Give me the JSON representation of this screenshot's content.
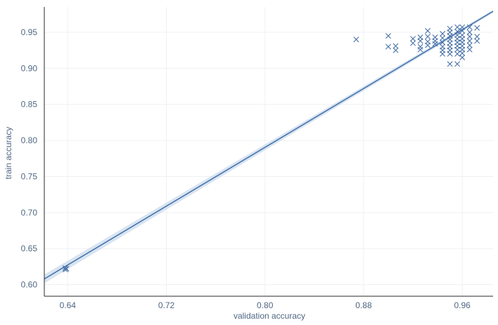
{
  "chart_data": {
    "type": "scatter",
    "xlabel": "validation accuracy",
    "ylabel": "train accuracy",
    "xlim": [
      0.621,
      0.985
    ],
    "ylim": [
      0.584,
      0.985
    ],
    "x_ticks": [
      0.64,
      0.72,
      0.8,
      0.88,
      0.96
    ],
    "x_tick_labels": [
      "0.64",
      "0.72",
      "0.80",
      "0.88",
      "0.96"
    ],
    "y_ticks": [
      0.6,
      0.65,
      0.7,
      0.75,
      0.8,
      0.85,
      0.9,
      0.95
    ],
    "y_tick_labels": [
      "0.60",
      "0.65",
      "0.70",
      "0.75",
      "0.80",
      "0.85",
      "0.90",
      "0.95"
    ],
    "grid": true,
    "marker": "x",
    "color": "#4a72a8",
    "regression": {
      "x": [
        0.621,
        0.985
      ],
      "y": [
        0.608,
        0.979
      ],
      "band_halfwidth": [
        0.006,
        0.002
      ]
    },
    "points": [
      {
        "x": 0.638,
        "y": 0.623
      },
      {
        "x": 0.639,
        "y": 0.622
      },
      {
        "x": 0.638,
        "y": 0.621
      },
      {
        "x": 0.874,
        "y": 0.94
      },
      {
        "x": 0.9,
        "y": 0.945
      },
      {
        "x": 0.9,
        "y": 0.93
      },
      {
        "x": 0.906,
        "y": 0.931
      },
      {
        "x": 0.906,
        "y": 0.925
      },
      {
        "x": 0.92,
        "y": 0.941
      },
      {
        "x": 0.92,
        "y": 0.935
      },
      {
        "x": 0.926,
        "y": 0.943
      },
      {
        "x": 0.926,
        "y": 0.938
      },
      {
        "x": 0.926,
        "y": 0.93
      },
      {
        "x": 0.926,
        "y": 0.926
      },
      {
        "x": 0.932,
        "y": 0.952
      },
      {
        "x": 0.932,
        "y": 0.944
      },
      {
        "x": 0.932,
        "y": 0.937
      },
      {
        "x": 0.932,
        "y": 0.932
      },
      {
        "x": 0.938,
        "y": 0.943
      },
      {
        "x": 0.938,
        "y": 0.938
      },
      {
        "x": 0.938,
        "y": 0.934
      },
      {
        "x": 0.944,
        "y": 0.948
      },
      {
        "x": 0.944,
        "y": 0.942
      },
      {
        "x": 0.944,
        "y": 0.936
      },
      {
        "x": 0.944,
        "y": 0.93
      },
      {
        "x": 0.944,
        "y": 0.925
      },
      {
        "x": 0.944,
        "y": 0.92
      },
      {
        "x": 0.95,
        "y": 0.955
      },
      {
        "x": 0.95,
        "y": 0.95
      },
      {
        "x": 0.95,
        "y": 0.945
      },
      {
        "x": 0.95,
        "y": 0.94
      },
      {
        "x": 0.95,
        "y": 0.935
      },
      {
        "x": 0.95,
        "y": 0.93
      },
      {
        "x": 0.95,
        "y": 0.925
      },
      {
        "x": 0.95,
        "y": 0.92
      },
      {
        "x": 0.95,
        "y": 0.906
      },
      {
        "x": 0.956,
        "y": 0.957
      },
      {
        "x": 0.956,
        "y": 0.951
      },
      {
        "x": 0.956,
        "y": 0.946
      },
      {
        "x": 0.956,
        "y": 0.941
      },
      {
        "x": 0.956,
        "y": 0.936
      },
      {
        "x": 0.956,
        "y": 0.931
      },
      {
        "x": 0.956,
        "y": 0.926
      },
      {
        "x": 0.956,
        "y": 0.92
      },
      {
        "x": 0.956,
        "y": 0.906
      },
      {
        "x": 0.96,
        "y": 0.957
      },
      {
        "x": 0.96,
        "y": 0.952
      },
      {
        "x": 0.96,
        "y": 0.946
      },
      {
        "x": 0.96,
        "y": 0.941
      },
      {
        "x": 0.96,
        "y": 0.936
      },
      {
        "x": 0.96,
        "y": 0.931
      },
      {
        "x": 0.96,
        "y": 0.926
      },
      {
        "x": 0.96,
        "y": 0.921
      },
      {
        "x": 0.96,
        "y": 0.915
      },
      {
        "x": 0.966,
        "y": 0.957
      },
      {
        "x": 0.966,
        "y": 0.95
      },
      {
        "x": 0.966,
        "y": 0.944
      },
      {
        "x": 0.966,
        "y": 0.938
      },
      {
        "x": 0.966,
        "y": 0.932
      },
      {
        "x": 0.966,
        "y": 0.926
      },
      {
        "x": 0.972,
        "y": 0.956
      },
      {
        "x": 0.972,
        "y": 0.944
      },
      {
        "x": 0.972,
        "y": 0.938
      }
    ]
  }
}
